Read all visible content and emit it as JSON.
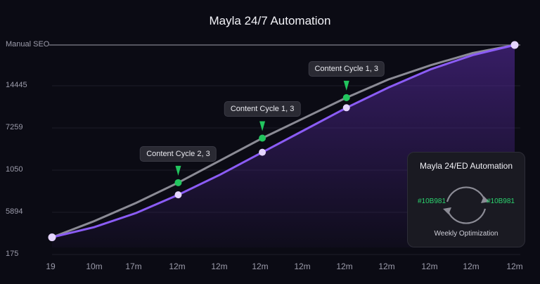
{
  "chart_data": {
    "type": "line",
    "title": "Mayla 24/7 Automation",
    "y_tick_labels": [
      "Manual SEO",
      "14445",
      "7259",
      "1050",
      "5894",
      "175"
    ],
    "x_tick_labels": [
      "19",
      "10m",
      "17m",
      "12m",
      "12m",
      "12m",
      "12m",
      "12m",
      "12m",
      "12m",
      "12m",
      "12m"
    ],
    "grid": true,
    "series": [
      {
        "color": "#8b8b95",
        "x": [
          0,
          1,
          2,
          3,
          4,
          5,
          6,
          7,
          8,
          9,
          10,
          11
        ],
        "values": [
          0.05,
          0.13,
          0.22,
          0.32,
          0.43,
          0.54,
          0.64,
          0.74,
          0.83,
          0.9,
          0.96,
          1.0
        ]
      },
      {
        "color": "#8b5cf6",
        "x": [
          0,
          1,
          2,
          3,
          4,
          5,
          6,
          7,
          8,
          9,
          10,
          11
        ],
        "values": [
          0.05,
          0.1,
          0.17,
          0.26,
          0.36,
          0.47,
          0.58,
          0.69,
          0.79,
          0.88,
          0.95,
          1.0
        ]
      }
    ],
    "annotations": [
      {
        "label": "Content Cycle 2, 3",
        "x": 3
      },
      {
        "label": "Content Cycle 1, 3",
        "x": 5
      },
      {
        "label": "Content Cycle 1, 3",
        "x": 7
      }
    ]
  },
  "inset": {
    "title": "Mayla 24/ED Automation",
    "left_label": "#10B981",
    "right_label": "#10B981",
    "bottom_label": "Weekly Optimization"
  }
}
